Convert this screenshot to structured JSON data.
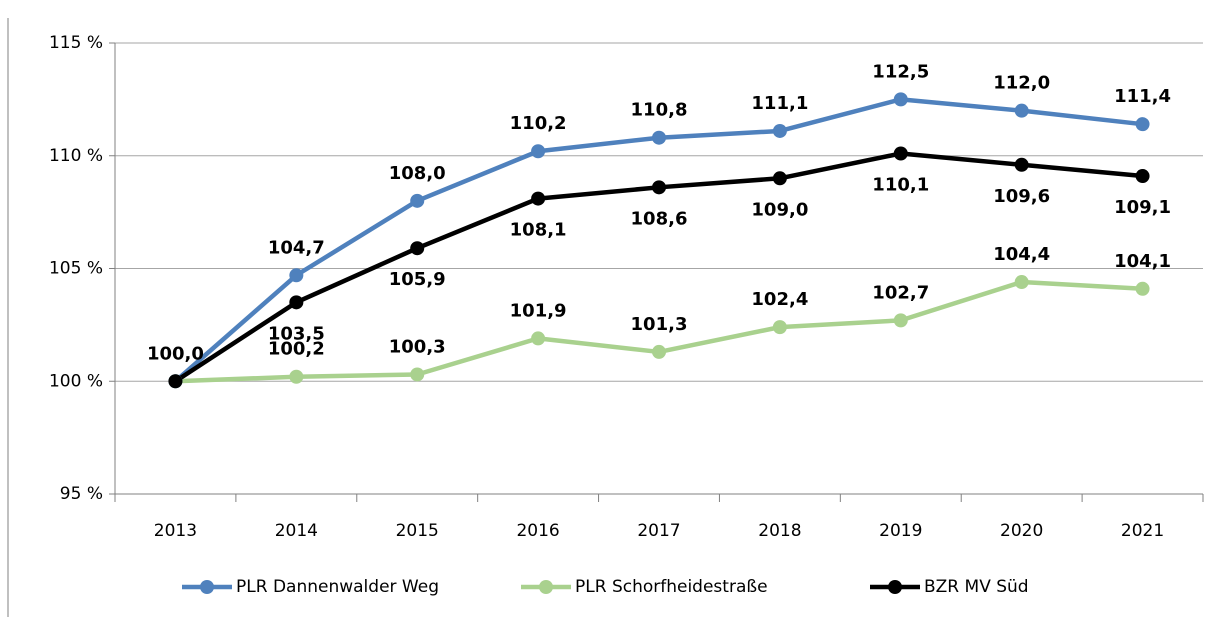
{
  "chart_data": {
    "type": "line",
    "categories": [
      "2013",
      "2014",
      "2015",
      "2016",
      "2017",
      "2018",
      "2019",
      "2020",
      "2021"
    ],
    "series": [
      {
        "name": "PLR Dannenwalder Weg",
        "color": "#4f81bd",
        "values": [
          100.0,
          104.7,
          108.0,
          110.2,
          110.8,
          111.1,
          112.5,
          112.0,
          111.4
        ],
        "value_labels": [
          "100,0",
          "104,7",
          "108,0",
          "110,2",
          "110,8",
          "111,1",
          "112,5",
          "112,0",
          "111,4"
        ]
      },
      {
        "name": "PLR Schorfheidestraße",
        "color": "#a9d18e",
        "values": [
          100.0,
          100.2,
          100.3,
          101.9,
          101.3,
          102.4,
          102.7,
          104.4,
          104.1
        ],
        "value_labels": [
          null,
          "100,2",
          "100,3",
          "101,9",
          "101,3",
          "102,4",
          "102,7",
          "104,4",
          "104,1"
        ]
      },
      {
        "name": "BZR MV Süd",
        "color": "#000000",
        "values": [
          100.0,
          103.5,
          105.9,
          108.1,
          108.6,
          109.0,
          110.1,
          109.6,
          109.1
        ],
        "value_labels": [
          null,
          "103,5",
          "105,9",
          "108,1",
          "108,6",
          "109,0",
          "110,1",
          "109,6",
          "109,1"
        ]
      }
    ],
    "ylim": [
      95,
      115
    ],
    "yticks": [
      {
        "value": 95,
        "label": "95 %"
      },
      {
        "value": 100,
        "label": "100 %"
      },
      {
        "value": 105,
        "label": "105 %"
      },
      {
        "value": 110,
        "label": "110 %"
      },
      {
        "value": 115,
        "label": "115 %"
      }
    ],
    "grid": true,
    "legend": "bottom"
  }
}
